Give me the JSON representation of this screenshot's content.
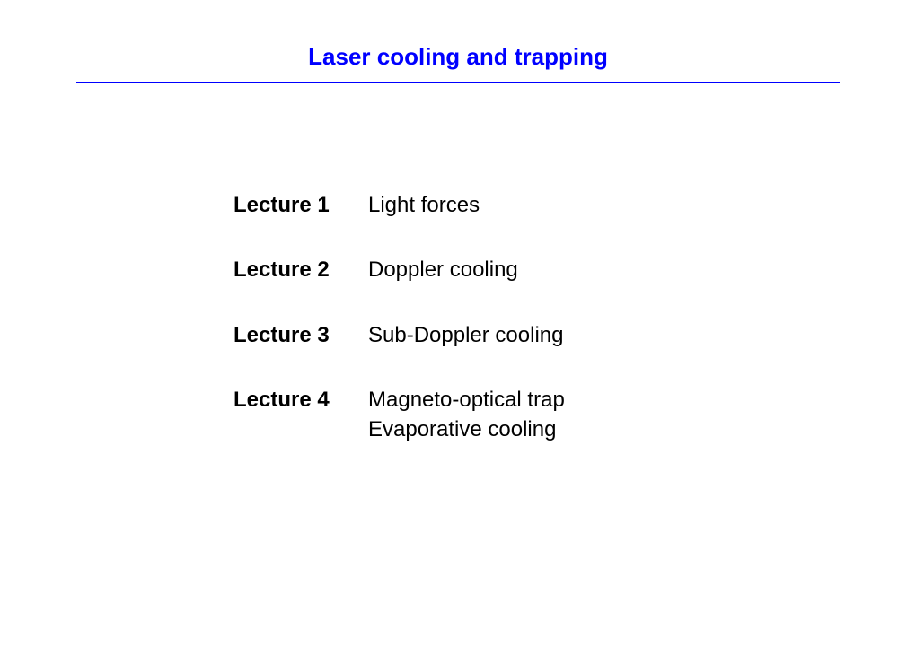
{
  "title": "Laser cooling and trapping",
  "title_color": "#0000ff",
  "underline_color": "#0000ff",
  "background_color": "#ffffff",
  "text_color": "#000000",
  "title_fontsize": 26,
  "body_fontsize": 24,
  "lectures": [
    {
      "label": "Lecture 1",
      "topics": [
        "Light forces"
      ]
    },
    {
      "label": "Lecture 2",
      "topics": [
        "Doppler cooling"
      ]
    },
    {
      "label": "Lecture 3",
      "topics": [
        "Sub-Doppler cooling"
      ]
    },
    {
      "label": "Lecture 4",
      "topics": [
        "Magneto-optical trap",
        "Evaporative cooling"
      ]
    }
  ]
}
